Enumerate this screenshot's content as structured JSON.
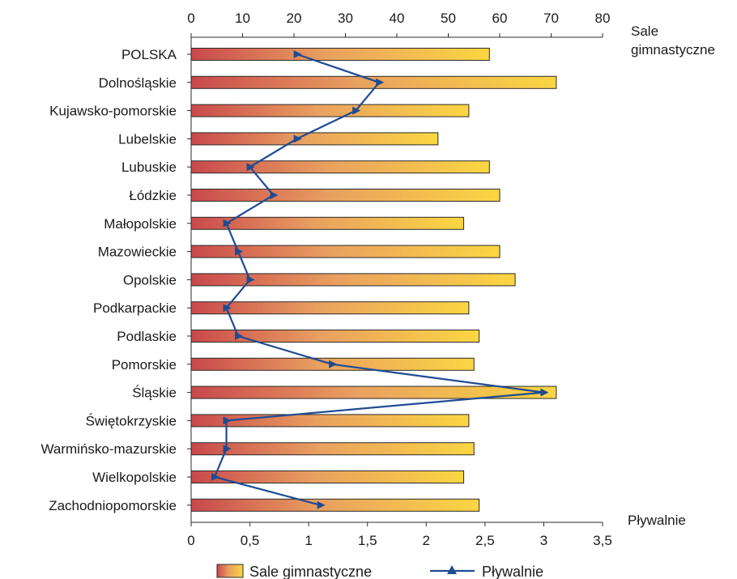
{
  "chart_data": {
    "type": "bar",
    "orientation": "horizontal",
    "categories": [
      "POLSKA",
      "Dolnośląskie",
      "Kujawsko-pomorskie",
      "Lubelskie",
      "Lubuskie",
      "Łódzkie",
      "Małopolskie",
      "Mazowieckie",
      "Opolskie",
      "Podkarpackie",
      "Podlaskie",
      "Pomorskie",
      "Śląskie",
      "Świętokrzyskie",
      "Warmińsko-mazurskie",
      "Wielkopolskie",
      "Zachodniopomorskie"
    ],
    "series": [
      {
        "name": "Sale gimnastyczne",
        "type": "bar",
        "axis": "top",
        "values": [
          58,
          71,
          54,
          48,
          58,
          60,
          53,
          60,
          63,
          54,
          56,
          55,
          71,
          54,
          55,
          53,
          56
        ]
      },
      {
        "name": "Pływalnie",
        "type": "line",
        "axis": "bottom",
        "values": [
          0.9,
          1.6,
          1.4,
          0.9,
          0.5,
          0.7,
          0.3,
          0.4,
          0.5,
          0.3,
          0.4,
          1.2,
          3.0,
          0.3,
          0.3,
          0.2,
          1.1
        ]
      }
    ],
    "x_top": {
      "label_lines": [
        "Sale",
        "gimnastyczne"
      ],
      "range": [
        0,
        80
      ],
      "ticks": [
        "0",
        "10",
        "20",
        "30",
        "40",
        "50",
        "60",
        "70",
        "80"
      ]
    },
    "x_bottom": {
      "label": "Pływalnie",
      "range": [
        0,
        3.5
      ],
      "ticks": [
        "0",
        "0,5",
        "1",
        "1,5",
        "2",
        "2,5",
        "3",
        "3,5"
      ]
    },
    "legend": {
      "position": "bottom",
      "items": [
        {
          "label": "Sale gimnastyczne",
          "kind": "bar"
        },
        {
          "label": "Pływalnie",
          "kind": "line"
        }
      ]
    },
    "colors": {
      "bar_start": "#c9484c",
      "bar_mid": "#e9a060",
      "bar_end": "#fbd642",
      "line": "#1f4b93",
      "axis": "#2b2b2b"
    },
    "grid": false
  }
}
